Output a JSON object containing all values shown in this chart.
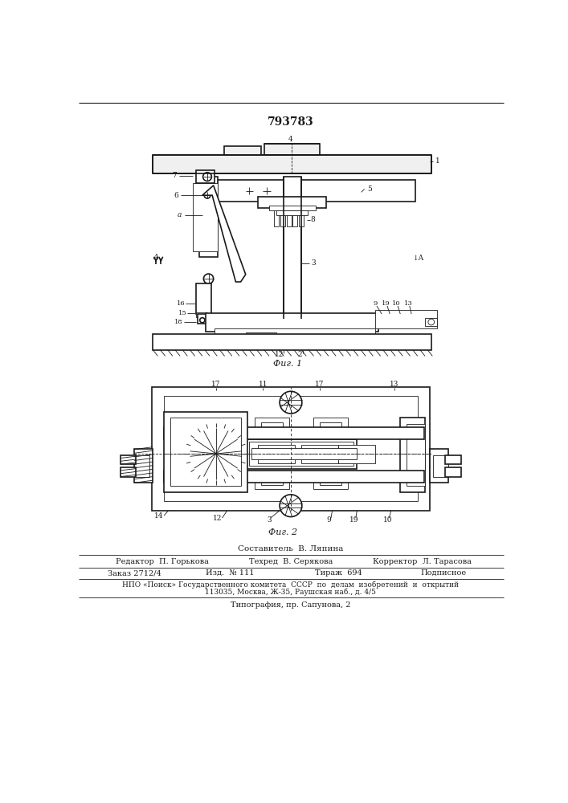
{
  "patent_number": "793783",
  "background_color": "#ffffff",
  "line_color": "#1a1a1a",
  "title_text": "793783",
  "fig1_caption": "Фиг. 1",
  "fig2_caption": "Фиг. 2",
  "footer_sostavitel": "Составитель  В. Ляпина",
  "footer_editor": "Редактор  П. Горькова",
  "footer_tech": "Техред  В. Серякова",
  "footer_corrector": "Корректор  Л. Тарасова",
  "footer_order": "Заказ 2712/4",
  "footer_izd": "Изд.  № 111",
  "footer_tirazh": "Тираж  694",
  "footer_podpisnoe": "Подписное",
  "footer_npo": "НПО «Поиск» Государственного комитета  СССР  по  делам  изобретений  и  открытий",
  "footer_address": "113035, Москва, Ж-35, Раушская наб., д. 4/5",
  "footer_tipografiya": "Типография, пр. Сапунова, 2"
}
